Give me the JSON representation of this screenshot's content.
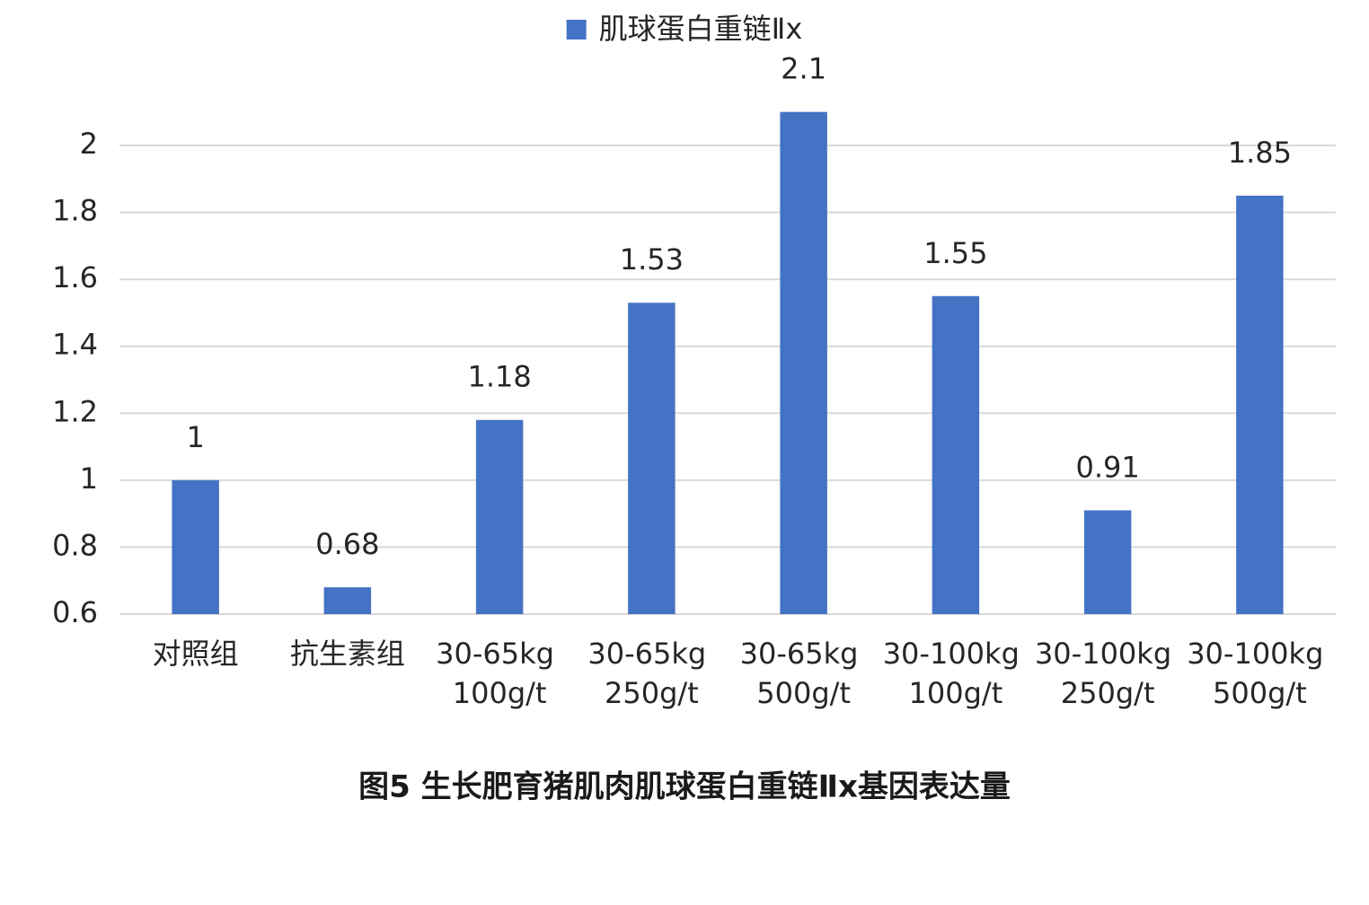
{
  "chart_data": {
    "type": "bar",
    "title": "图5 生长肥育猪肌肉肌球蛋白重链Ⅱx基因表达量",
    "categories": [
      "对照组",
      "抗生素组",
      "30-65kg 100g/t",
      "30-65kg 250g/t",
      "30-65kg 500g/t",
      "30-100kg 100g/t",
      "30-100kg 250g/t",
      "30-100kg 500g/t"
    ],
    "series": [
      {
        "name": "肌球蛋白重链Ⅱx",
        "color": "#4472c4",
        "values": [
          1,
          0.68,
          1.18,
          1.53,
          2.1,
          1.55,
          0.91,
          1.85
        ]
      }
    ],
    "ylim": [
      0.6,
      2.2
    ],
    "yticks": [
      0.6,
      0.8,
      1,
      1.2,
      1.4,
      1.6,
      1.8,
      2
    ],
    "grid": true,
    "legend": "top"
  }
}
